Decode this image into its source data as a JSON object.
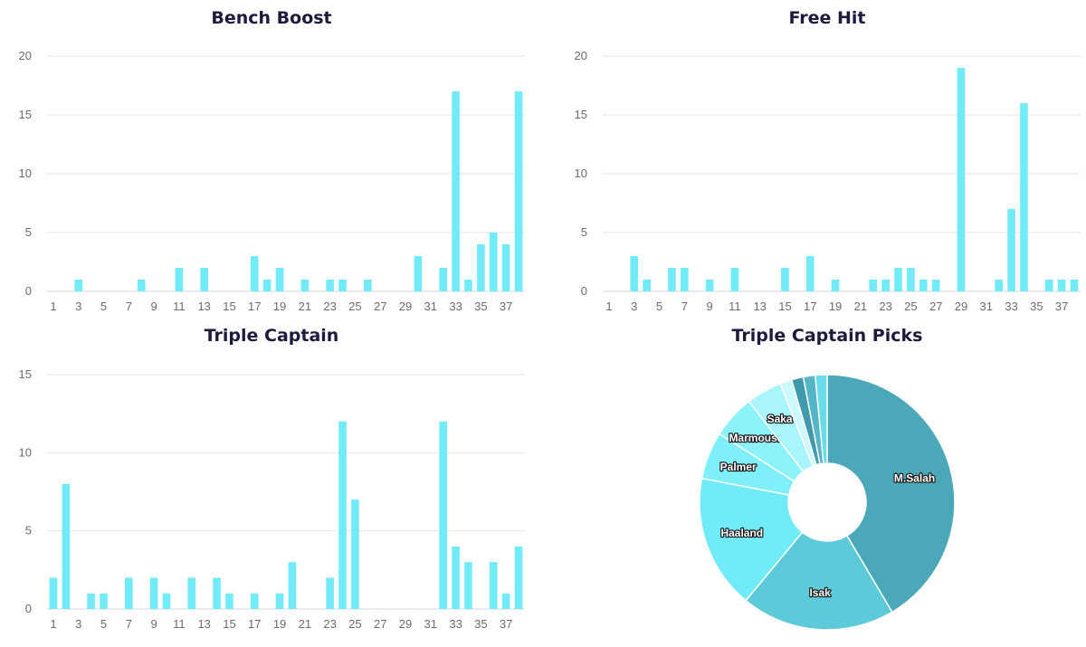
{
  "chart_data": [
    {
      "type": "bar",
      "title": "Bench Boost",
      "categories": [
        1,
        2,
        3,
        4,
        5,
        6,
        7,
        8,
        9,
        10,
        11,
        12,
        13,
        14,
        15,
        16,
        17,
        18,
        19,
        20,
        21,
        22,
        23,
        24,
        25,
        26,
        27,
        28,
        29,
        30,
        31,
        32,
        33,
        34,
        35,
        36,
        37,
        38
      ],
      "values": [
        0,
        0,
        1,
        0,
        0,
        0,
        0,
        1,
        0,
        0,
        2,
        0,
        2,
        0,
        0,
        0,
        3,
        1,
        2,
        0,
        1,
        0,
        1,
        1,
        0,
        1,
        0,
        0,
        0,
        3,
        0,
        2,
        17,
        1,
        4,
        5,
        4,
        17
      ],
      "x_tick_labels": [
        "1",
        "3",
        "5",
        "7",
        "9",
        "11",
        "13",
        "15",
        "17",
        "19",
        "21",
        "23",
        "25",
        "27",
        "29",
        "31",
        "33",
        "35",
        "37"
      ],
      "y_ticks": [
        0,
        5,
        10,
        15,
        20
      ],
      "ylim": [
        0,
        20
      ],
      "grid": true,
      "color": "#72ebf8"
    },
    {
      "type": "bar",
      "title": "Free Hit",
      "categories": [
        1,
        2,
        3,
        4,
        5,
        6,
        7,
        8,
        9,
        10,
        11,
        12,
        13,
        14,
        15,
        16,
        17,
        18,
        19,
        20,
        21,
        22,
        23,
        24,
        25,
        26,
        27,
        28,
        29,
        30,
        31,
        32,
        33,
        34,
        35,
        36,
        37,
        38
      ],
      "values": [
        0,
        0,
        3,
        1,
        0,
        2,
        2,
        0,
        1,
        0,
        2,
        0,
        0,
        0,
        2,
        0,
        3,
        0,
        1,
        0,
        0,
        1,
        1,
        2,
        2,
        1,
        1,
        0,
        19,
        0,
        0,
        1,
        7,
        16,
        0,
        1,
        1,
        1
      ],
      "x_tick_labels": [
        "1",
        "3",
        "5",
        "7",
        "9",
        "11",
        "13",
        "15",
        "17",
        "19",
        "21",
        "23",
        "25",
        "27",
        "29",
        "31",
        "33",
        "35",
        "37"
      ],
      "y_ticks": [
        0,
        5,
        10,
        15,
        20
      ],
      "ylim": [
        0,
        20
      ],
      "grid": true,
      "color": "#72ebf8"
    },
    {
      "type": "bar",
      "title": "Triple Captain",
      "categories": [
        1,
        2,
        3,
        4,
        5,
        6,
        7,
        8,
        9,
        10,
        11,
        12,
        13,
        14,
        15,
        16,
        17,
        18,
        19,
        20,
        21,
        22,
        23,
        24,
        25,
        26,
        27,
        28,
        29,
        30,
        31,
        32,
        33,
        34,
        35,
        36,
        37,
        38
      ],
      "values": [
        2,
        8,
        0,
        1,
        1,
        0,
        2,
        0,
        2,
        1,
        0,
        2,
        0,
        2,
        1,
        0,
        1,
        0,
        1,
        3,
        0,
        0,
        2,
        12,
        7,
        0,
        0,
        0,
        0,
        0,
        0,
        12,
        4,
        3,
        0,
        3,
        1,
        4
      ],
      "x_tick_labels": [
        "1",
        "3",
        "5",
        "7",
        "9",
        "11",
        "13",
        "15",
        "17",
        "19",
        "21",
        "23",
        "25",
        "27",
        "29",
        "31",
        "33",
        "35",
        "37"
      ],
      "y_ticks": [
        0,
        5,
        10,
        15
      ],
      "ylim": [
        0,
        15
      ],
      "grid": true,
      "color": "#72ebf8"
    },
    {
      "type": "pie",
      "title": "Triple Captain Picks",
      "donut": true,
      "slices": [
        {
          "label": "M.Salah",
          "value": 41.5,
          "color": "#4aa8b8"
        },
        {
          "label": "Isak",
          "value": 19.5,
          "color": "#5ccad8"
        },
        {
          "label": "Haaland",
          "value": 17,
          "color": "#72ebf8"
        },
        {
          "label": "Palmer",
          "value": 6,
          "color": "#7ff0fa"
        },
        {
          "label": "Marmoush",
          "value": 5.5,
          "color": "#8ef2fb"
        },
        {
          "label": "Saka",
          "value": 4.5,
          "color": "#a8f5fc"
        },
        {
          "label": "",
          "value": 1.5,
          "color": "#cdf8fd"
        },
        {
          "label": "",
          "value": 1.5,
          "color": "#3f9aab"
        },
        {
          "label": "",
          "value": 1.5,
          "color": "#55b6c6"
        },
        {
          "label": "",
          "value": 1.5,
          "color": "#6adbe9"
        }
      ]
    }
  ]
}
